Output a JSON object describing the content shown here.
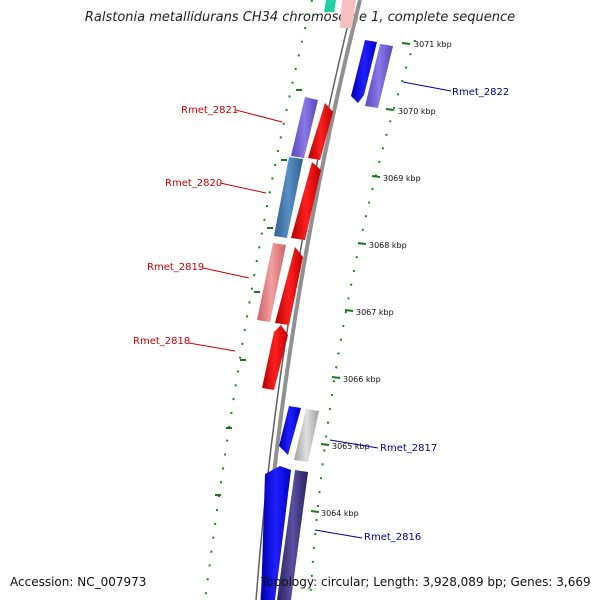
{
  "title": "Ralstonia metallidurans CH34 chromosome 1, complete sequence",
  "footer": {
    "accession": "Accession: NC_007973",
    "topology": "Topology: circular; Length: 3,928,089 bp; Genes: 3,669"
  },
  "ticks": [
    "3071 kbp",
    "3070 kbp",
    "3069 kbp",
    "3068 kbp",
    "3067 kbp",
    "3066 kbp",
    "3065 kbp",
    "3064 kbp"
  ],
  "genes_left": [
    {
      "label": "Rmet_2821",
      "color": "#cc0000"
    },
    {
      "label": "Rmet_2820",
      "color": "#cc0000"
    },
    {
      "label": "Rmet_2819",
      "color": "#cc0000"
    },
    {
      "label": "Rmet_2818",
      "color": "#cc0000"
    }
  ],
  "genes_right": [
    {
      "label": "Rmet_2822",
      "color": "#000099"
    },
    {
      "label": "Rmet_2817",
      "color": "#000099"
    },
    {
      "label": "Rmet_2816",
      "color": "#000099"
    }
  ],
  "colors": {
    "backbone": "#808080",
    "tick": "#1a7a1a",
    "forward": "#ff0000",
    "reverse": "#0000ff"
  }
}
